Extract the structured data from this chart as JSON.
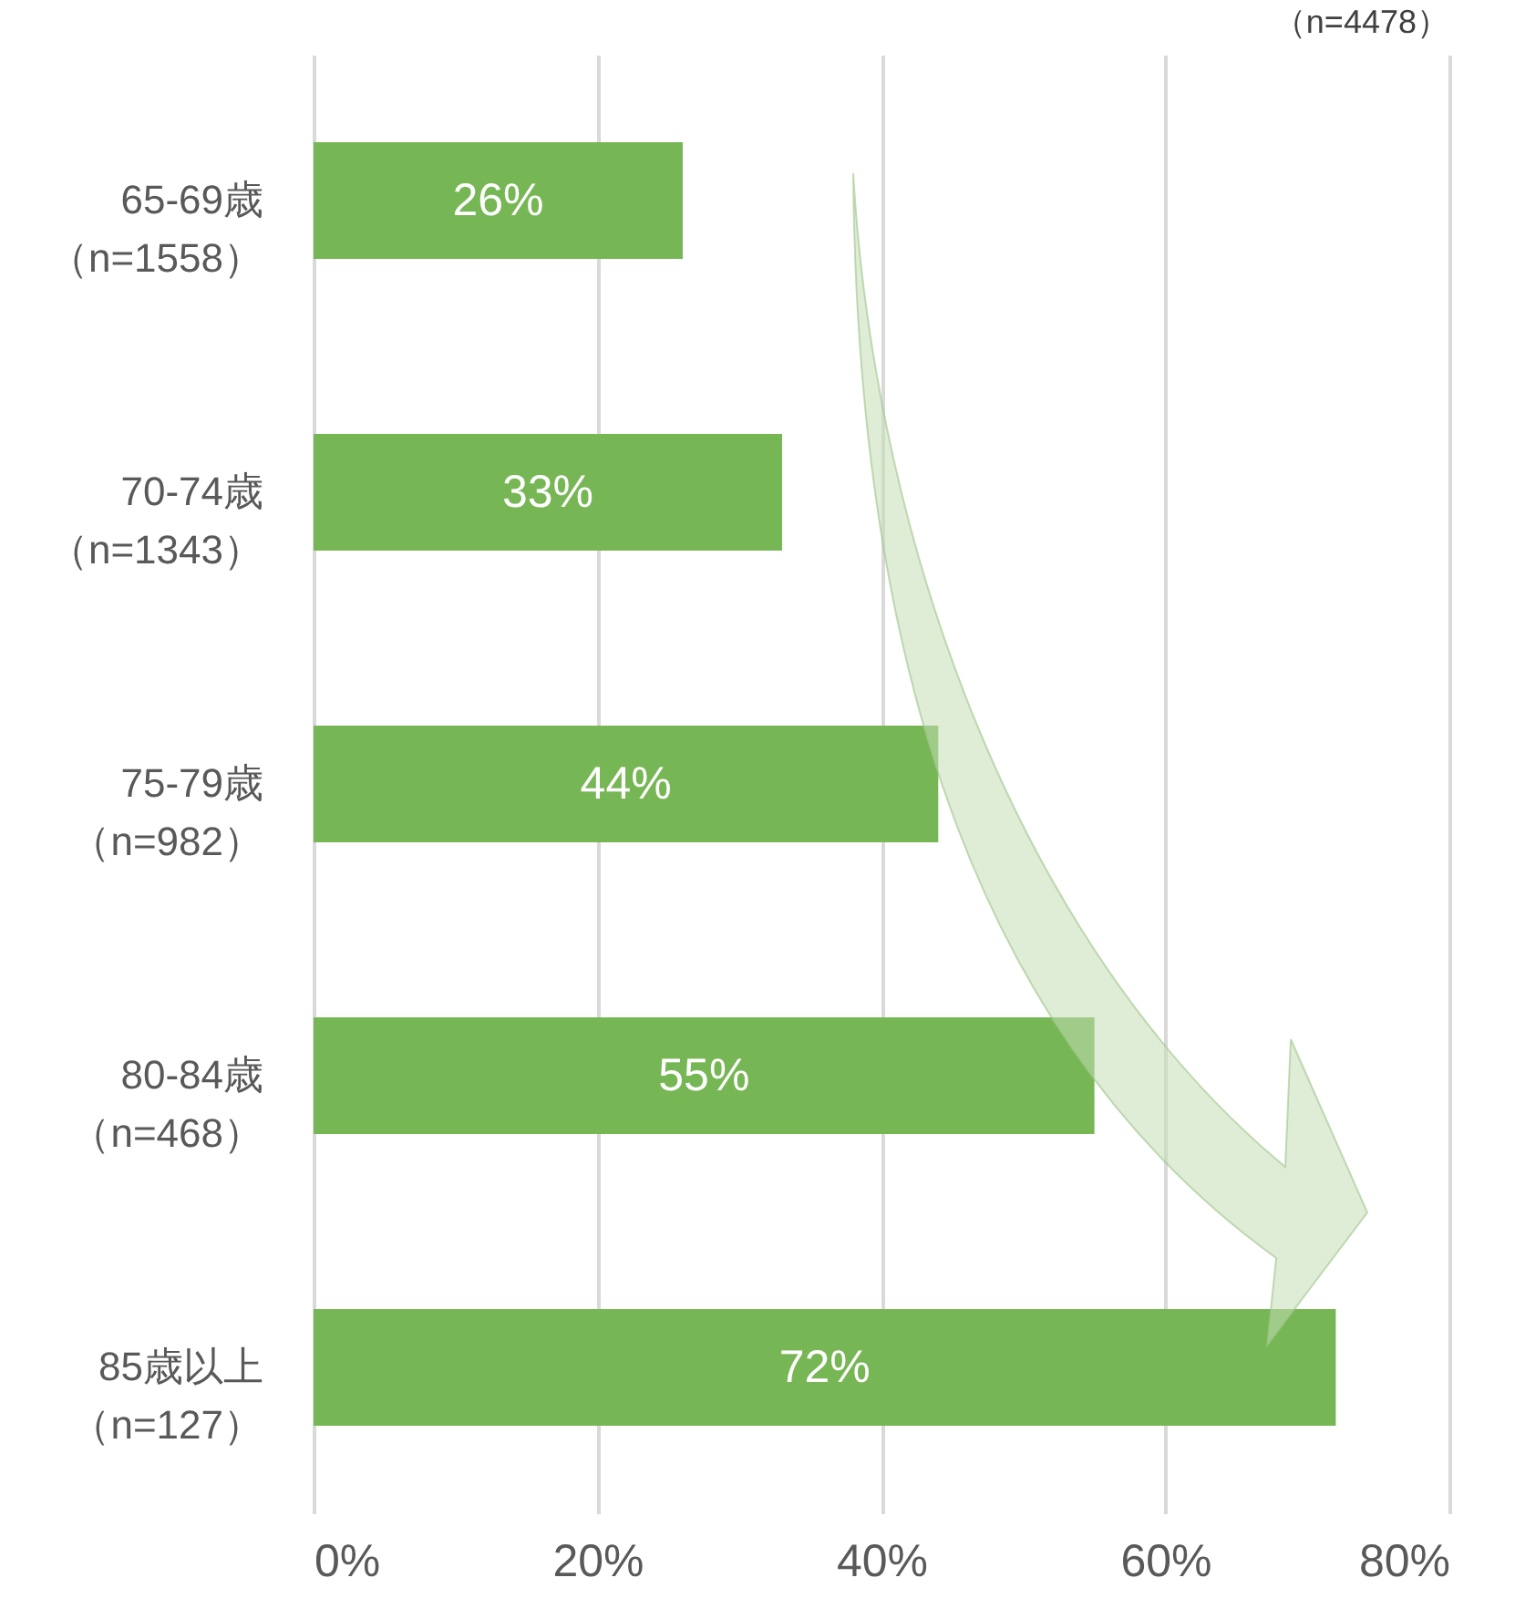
{
  "chart_data": {
    "type": "bar",
    "orientation": "horizontal",
    "subtitle": "（n=4478）",
    "categories": [
      "65-69歳（n=1558）",
      "70-74歳（n=1343）",
      "75-79歳（n=982）",
      "80-84歳（n=468）",
      "85歳以上（n=127）"
    ],
    "values": [
      26,
      33,
      44,
      55,
      72
    ],
    "color": "#77b654",
    "xlim": [
      0,
      80
    ],
    "xticks": [
      {
        "value": 0,
        "label": "0%"
      },
      {
        "value": 20,
        "label": "20%"
      },
      {
        "value": 40,
        "label": "40%"
      },
      {
        "value": 60,
        "label": "60%"
      },
      {
        "value": 80,
        "label": "80%"
      }
    ],
    "grid": "x",
    "data_labels": true,
    "value_labels": [
      "26%",
      "33%",
      "44%",
      "55%",
      "72%"
    ]
  }
}
